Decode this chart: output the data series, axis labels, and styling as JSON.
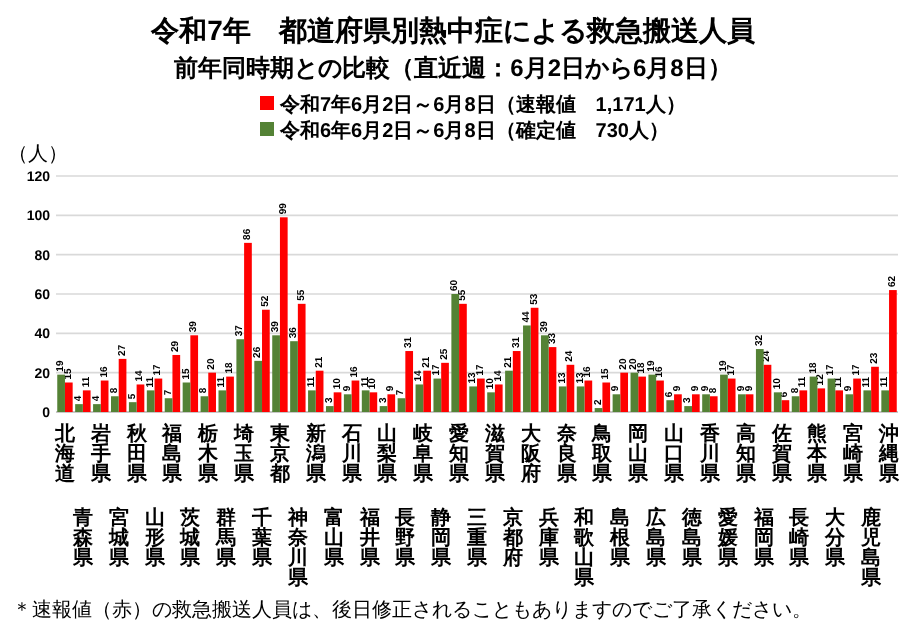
{
  "chart_data": {
    "type": "bar",
    "title": "令和7年　都道府県別熱中症による救急搬送人員",
    "subtitle": "前年同時期との比較（直近週：6月2日から6月8日）",
    "ylabel": "（人）",
    "annotations": [
      "＊速報値（赤）の救急搬送人員は、後日修正されることもありますのでご了承ください。"
    ],
    "categories": [
      "北海道",
      "青森県",
      "岩手県",
      "宮城県",
      "秋田県",
      "山形県",
      "福島県",
      "茨城県",
      "栃木県",
      "群馬県",
      "埼玉県",
      "千葉県",
      "東京都",
      "神奈川県",
      "新潟県",
      "富山県",
      "石川県",
      "福井県",
      "山梨県",
      "長野県",
      "岐阜県",
      "静岡県",
      "愛知県",
      "三重県",
      "滋賀県",
      "京都府",
      "大阪府",
      "兵庫県",
      "奈良県",
      "和歌山県",
      "鳥取県",
      "島根県",
      "岡山県",
      "広島県",
      "山口県",
      "徳島県",
      "香川県",
      "愛媛県",
      "高知県",
      "福岡県",
      "佐賀県",
      "長崎県",
      "熊本県",
      "大分県",
      "宮崎県",
      "鹿児島県",
      "沖縄県"
    ],
    "series": [
      {
        "name": "令和7年6月2日～6月8日（速報値　1,171人）",
        "color": "#ff0000",
        "values": [
          15,
          11,
          16,
          27,
          14,
          17,
          29,
          39,
          20,
          18,
          86,
          52,
          99,
          55,
          21,
          10,
          16,
          10,
          9,
          31,
          21,
          25,
          55,
          17,
          14,
          31,
          53,
          33,
          24,
          16,
          15,
          20,
          18,
          16,
          9,
          9,
          8,
          17,
          9,
          24,
          6,
          11,
          12,
          11,
          17,
          23,
          62
        ]
      },
      {
        "name": "令和6年6月2日～6月8日（確定値　730人）",
        "color": "#548235",
        "values": [
          19,
          4,
          4,
          8,
          5,
          11,
          7,
          15,
          8,
          11,
          37,
          26,
          39,
          36,
          11,
          3,
          9,
          11,
          3,
          7,
          14,
          17,
          60,
          13,
          10,
          21,
          44,
          39,
          13,
          13,
          2,
          9,
          20,
          19,
          6,
          3,
          9,
          19,
          9,
          32,
          10,
          8,
          18,
          17,
          9,
          11,
          11
        ]
      }
    ],
    "ylim": [
      0,
      120
    ],
    "yticks": [
      0,
      20,
      40,
      60,
      80,
      100,
      120
    ],
    "grid": "y",
    "legend": "top",
    "data_labels": true
  }
}
